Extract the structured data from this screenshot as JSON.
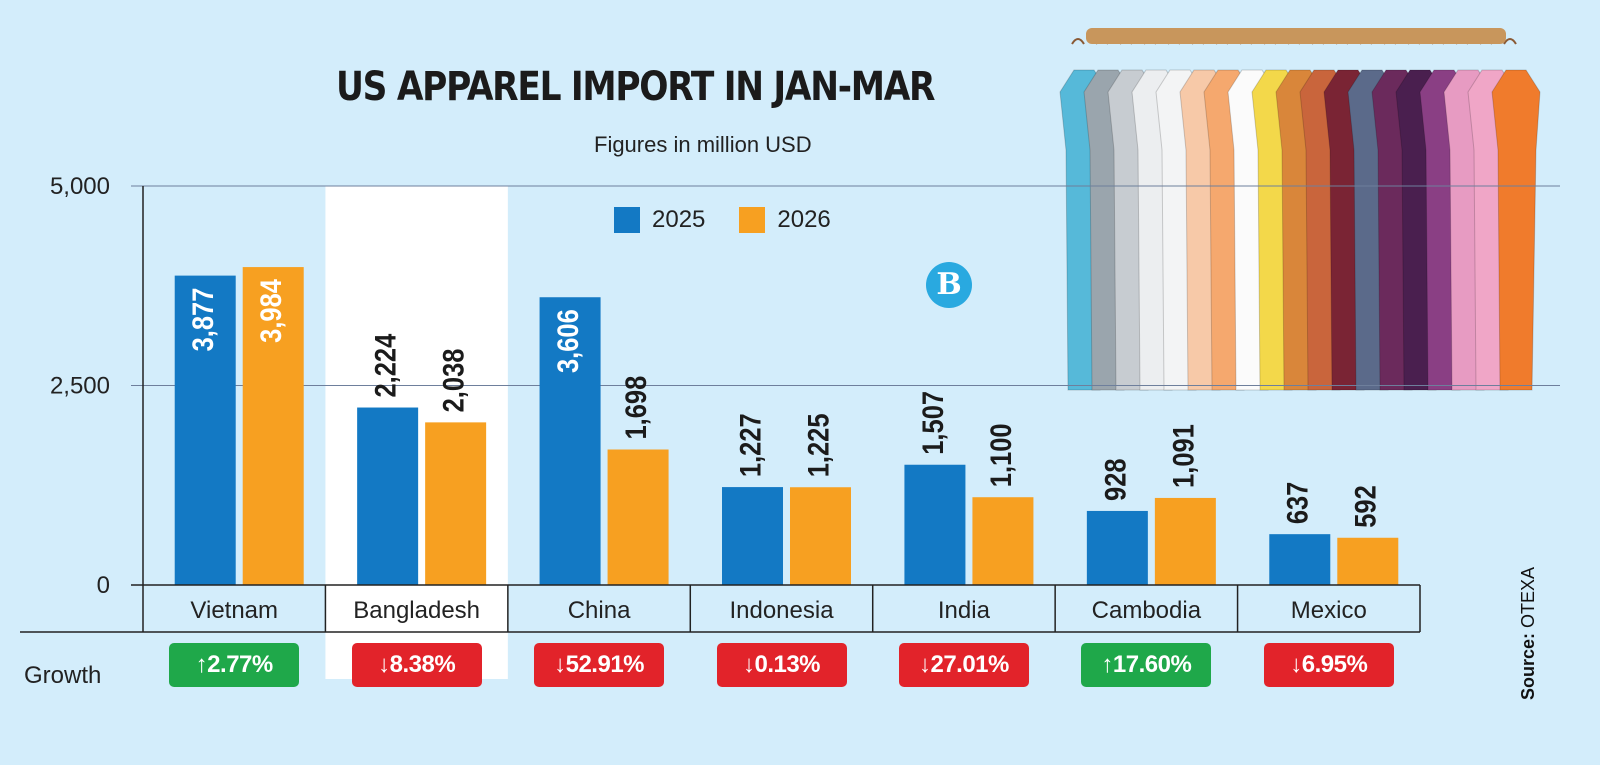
{
  "header": {
    "title": "US APPAREL IMPORT IN JAN-MAR",
    "subtitle": "Figures in million USD"
  },
  "logo_text": "B",
  "source": {
    "label": "Source:",
    "value": "OTEXA"
  },
  "growth_label": "Growth",
  "colors": {
    "series_2025": "#1379c4",
    "series_2026": "#f7a021",
    "growth_up": "#1fa84a",
    "growth_down": "#e2232a",
    "highlight": "#ffffff"
  },
  "chart_data": {
    "type": "bar",
    "title": "US APPAREL IMPORT IN JAN-MAR",
    "subtitle": "Figures in million USD",
    "xlabel": "",
    "ylabel": "",
    "ylim": [
      0,
      5000
    ],
    "yticks": [
      0,
      2500,
      5000
    ],
    "ytick_labels": [
      "0",
      "2,500",
      "5,000"
    ],
    "grid": true,
    "legend_position": "top-center",
    "categories": [
      "Vietnam",
      "Bangladesh",
      "China",
      "Indonesia",
      "India",
      "Cambodia",
      "Mexico"
    ],
    "highlighted_category": "Bangladesh",
    "series": [
      {
        "name": "2025",
        "values": [
          3877,
          2224,
          3606,
          1227,
          1507,
          928,
          637
        ],
        "labels": [
          "3,877",
          "2,224",
          "3,606",
          "1,227",
          "1,507",
          "928",
          "637"
        ]
      },
      {
        "name": "2026",
        "values": [
          3984,
          2038,
          1698,
          1225,
          1100,
          1091,
          592
        ],
        "labels": [
          "3,984",
          "2,038",
          "1,698",
          "1,225",
          "1,100",
          "1,091",
          "592"
        ]
      }
    ],
    "growth": [
      {
        "direction": "up",
        "text": "↑2.77%"
      },
      {
        "direction": "down",
        "text": "↓8.38%"
      },
      {
        "direction": "down",
        "text": "↓52.91%"
      },
      {
        "direction": "down",
        "text": "↓0.13%"
      },
      {
        "direction": "down",
        "text": "↓27.01%"
      },
      {
        "direction": "up",
        "text": "↑17.60%"
      },
      {
        "direction": "down",
        "text": "↓6.95%"
      }
    ]
  }
}
